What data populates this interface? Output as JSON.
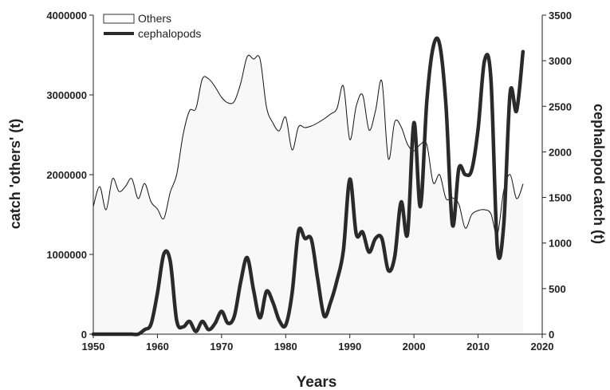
{
  "chart_data": {
    "type": "line",
    "x_title": "Years",
    "y_left_title": "catch 'others' (t)",
    "y_right_title": "cephalopod catch (t)",
    "x_ticks": [
      1950,
      1960,
      1970,
      1980,
      1990,
      2000,
      2010,
      2020
    ],
    "y_left_ticks": [
      0,
      1000000,
      2000000,
      3000000,
      4000000
    ],
    "y_right_ticks": [
      0,
      500,
      1000,
      1500,
      2000,
      2500,
      3000,
      3500
    ],
    "xlim": [
      1950,
      2020
    ],
    "ylim_left": [
      0,
      4000000
    ],
    "ylim_right": [
      0,
      3500
    ],
    "grid": false,
    "legend_position": "top-left",
    "series": [
      {
        "name": "Others",
        "axis": "left",
        "style": "thin line, light fill",
        "color": "#111111",
        "fill": "#f8f8f8",
        "x": [
          1950,
          1951,
          1952,
          1953,
          1954,
          1955,
          1956,
          1957,
          1958,
          1959,
          1960,
          1961,
          1962,
          1963,
          1964,
          1965,
          1966,
          1967,
          1968,
          1969,
          1970,
          1971,
          1972,
          1973,
          1974,
          1975,
          1976,
          1977,
          1978,
          1979,
          1980,
          1981,
          1982,
          1983,
          1984,
          1985,
          1986,
          1987,
          1988,
          1989,
          1990,
          1991,
          1992,
          1993,
          1994,
          1995,
          1996,
          1997,
          1998,
          1999,
          2000,
          2001,
          2002,
          2003,
          2004,
          2005,
          2006,
          2007,
          2008,
          2009,
          2010,
          2011,
          2012,
          2013,
          2014,
          2015,
          2016,
          2017
        ],
        "values": [
          1600000,
          1850000,
          1560000,
          1950000,
          1790000,
          1850000,
          1950000,
          1700000,
          1890000,
          1660000,
          1570000,
          1450000,
          1780000,
          2000000,
          2500000,
          2800000,
          2830000,
          3200000,
          3200000,
          3100000,
          2970000,
          2900000,
          2920000,
          3150000,
          3480000,
          3450000,
          3450000,
          2850000,
          2650000,
          2550000,
          2720000,
          2310000,
          2600000,
          2590000,
          2610000,
          2650000,
          2700000,
          2760000,
          2830000,
          3110000,
          2440000,
          2860000,
          3000000,
          2560000,
          2800000,
          3170000,
          2200000,
          2660000,
          2600000,
          2380000,
          2300000,
          2380000,
          2380000,
          1900000,
          2000000,
          1700000,
          1710000,
          1630000,
          1330000,
          1500000,
          1550000,
          1560000,
          1510000,
          1250000,
          1800000,
          2000000,
          1700000,
          1880000
        ]
      },
      {
        "name": "cephalopods",
        "axis": "right",
        "style": "thick line",
        "color": "#2a2a2a",
        "x": [
          1950,
          1951,
          1952,
          1953,
          1954,
          1955,
          1956,
          1957,
          1958,
          1959,
          1960,
          1961,
          1962,
          1963,
          1964,
          1965,
          1966,
          1967,
          1968,
          1969,
          1970,
          1971,
          1972,
          1973,
          1974,
          1975,
          1976,
          1977,
          1978,
          1979,
          1980,
          1981,
          1982,
          1983,
          1984,
          1985,
          1986,
          1987,
          1988,
          1989,
          1990,
          1991,
          1992,
          1993,
          1994,
          1995,
          1996,
          1997,
          1998,
          1999,
          2000,
          2001,
          2002,
          2003,
          2004,
          2005,
          2006,
          2007,
          2008,
          2009,
          2010,
          2011,
          2012,
          2013,
          2014,
          2015,
          2016,
          2017
        ],
        "values": [
          0,
          0,
          0,
          0,
          0,
          0,
          0,
          0,
          50,
          110,
          450,
          880,
          800,
          150,
          80,
          140,
          30,
          140,
          50,
          120,
          250,
          120,
          200,
          580,
          840,
          480,
          180,
          470,
          350,
          150,
          100,
          450,
          1130,
          1050,
          1040,
          600,
          200,
          350,
          590,
          920,
          1700,
          1100,
          1120,
          900,
          1050,
          1050,
          700,
          850,
          1450,
          1100,
          2320,
          1400,
          2550,
          3150,
          3180,
          2500,
          1200,
          1820,
          1750,
          1800,
          2250,
          3000,
          2800,
          950,
          1200,
          2650,
          2450,
          3100
        ]
      }
    ]
  }
}
